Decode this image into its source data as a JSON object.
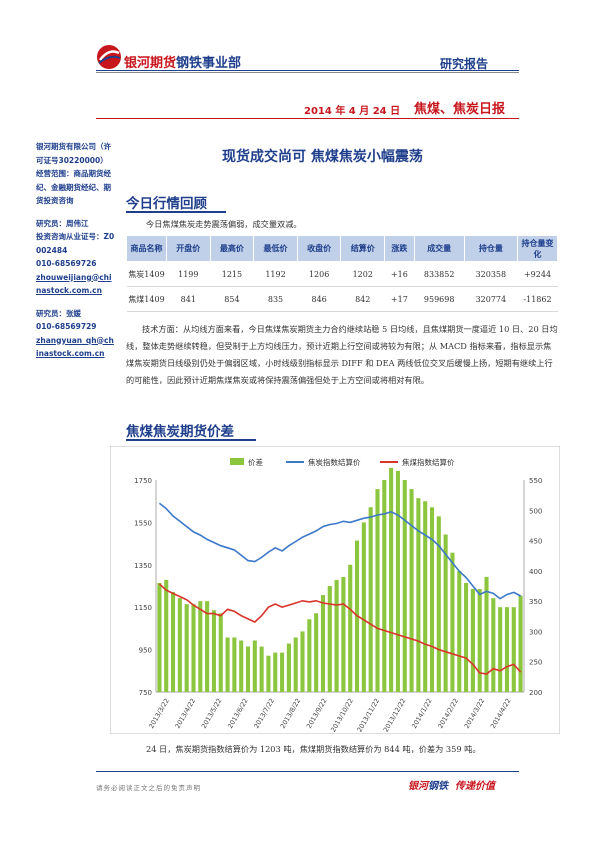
{
  "header": {
    "company_red": "银河期货",
    "company_blue": "钢铁事业部",
    "report_type": "研究报告",
    "date": "2014 年 4 月 24 日",
    "report_name": "焦煤、焦炭日报"
  },
  "sidebar": {
    "company": "银河期货有限公司（许可证号30220000）",
    "scope": "经营范围：商品期货经纪、金融期货经纪、期货投资咨询",
    "analyst1": "研究员：周伟江",
    "cert1": "投资咨询从业证号：Z0002484",
    "phone1": "010-68569726",
    "email1": "zhouweijiang@chinastock.com.cn",
    "analyst2": "研究员：张媛",
    "phone2": "010-68569729",
    "email2": "zhangyuan_qh@chinastock.com.cn"
  },
  "main": {
    "title": "现货成交尚可 焦煤焦炭小幅震荡",
    "section1": "今日行情回顾",
    "intro": "今日焦煤焦炭走势震荡偏弱，成交量双减。",
    "section2": "焦煤焦炭期货价差",
    "tech": "技术方面：从均线方面来看，今日焦煤焦炭期货主力合约继续站稳 5 日均线，且焦煤期货一度逼近 10 日、20 日均线，整体走势继续转稳，但受制于上方均线压力，预计近期上行空间或将较为有限；从 MACD 指标来看，指标显示焦煤焦炭期货日线级别仍处于偏弱区域，小时线级别指标显示 DIFF 和 DEA 两线低位交叉后缓慢上扬，短期有继续上行的可能性，因此预计近期焦煤焦炭或将保持震荡偏强但处于上方空间或将相对有限。",
    "summary": "24 日，焦炭期货指数结算价为 1203 吨，焦煤期货指数结算价为 844 吨，价差为 359 吨。"
  },
  "table": {
    "headers": [
      "商品名称",
      "开盘价",
      "最高价",
      "最低价",
      "收盘价",
      "结算价",
      "涨跌",
      "成交量",
      "持仓量",
      "持仓量变化"
    ],
    "rows": [
      [
        "焦炭1409",
        "1199",
        "1215",
        "1192",
        "1206",
        "1202",
        "+16",
        "833852",
        "320358",
        "+9244"
      ],
      [
        "焦煤1409",
        "841",
        "854",
        "835",
        "846",
        "842",
        "+17",
        "959698",
        "320774",
        "-11862"
      ]
    ]
  },
  "footer": {
    "disclaimer": "请务必阅读正文之后的免责声明",
    "slogan_red": "银河",
    "slogan_blue": "钢铁",
    "slogan_rest": "传递价值"
  },
  "chart_data": {
    "type": "bar",
    "legend_placement": "top",
    "series": [
      {
        "name": "价差",
        "axis": "right",
        "color": "#8cc63f",
        "type": "bar"
      },
      {
        "name": "焦炭指数结算价",
        "axis": "left",
        "color": "#3c78c8",
        "type": "line"
      },
      {
        "name": "焦煤指数结算价",
        "axis": "left",
        "color": "#d9342b",
        "type": "line"
      }
    ],
    "left_axis": {
      "ylim": [
        750,
        1750
      ],
      "ticks": [
        "1750",
        "1550",
        "1350",
        "1150",
        "950",
        "750"
      ]
    },
    "right_axis": {
      "ylim": [
        200,
        550
      ],
      "ticks": [
        "550",
        "500",
        "450",
        "400",
        "350",
        "300",
        "250",
        "200"
      ]
    },
    "x_ticks": [
      "2013/3/22",
      "2013/4/22",
      "2013/5/22",
      "2013/6/22",
      "2013/7/22",
      "2013/8/22",
      "2013/9/22",
      "2013/10/22",
      "2013/11/22",
      "2013/12/22",
      "2014/1/22",
      "2014/2/22",
      "2014/3/22",
      "2014/4/22"
    ],
    "coke": [
      1640,
      1615,
      1580,
      1555,
      1530,
      1505,
      1490,
      1470,
      1455,
      1440,
      1430,
      1420,
      1395,
      1370,
      1365,
      1385,
      1410,
      1430,
      1415,
      1440,
      1460,
      1480,
      1495,
      1510,
      1530,
      1540,
      1545,
      1555,
      1550,
      1560,
      1570,
      1575,
      1585,
      1590,
      1600,
      1585,
      1560,
      1535,
      1510,
      1490,
      1470,
      1440,
      1400,
      1360,
      1320,
      1290,
      1250,
      1210,
      1225,
      1215,
      1190,
      1210,
      1220,
      1203
    ],
    "coal": [
      1260,
      1230,
      1215,
      1200,
      1185,
      1160,
      1140,
      1120,
      1120,
      1110,
      1140,
      1130,
      1110,
      1095,
      1080,
      1110,
      1150,
      1165,
      1150,
      1160,
      1170,
      1180,
      1175,
      1180,
      1170,
      1165,
      1160,
      1165,
      1140,
      1110,
      1090,
      1070,
      1050,
      1040,
      1030,
      1020,
      1010,
      1000,
      990,
      975,
      965,
      950,
      940,
      930,
      920,
      910,
      880,
      840,
      835,
      860,
      850,
      870,
      880,
      844
    ],
    "spread": [
      380,
      385,
      365,
      355,
      345,
      345,
      350,
      350,
      335,
      330,
      290,
      290,
      285,
      275,
      285,
      275,
      260,
      265,
      265,
      280,
      290,
      300,
      320,
      330,
      360,
      375,
      385,
      390,
      410,
      450,
      480,
      505,
      535,
      550,
      570,
      565,
      550,
      535,
      520,
      515,
      505,
      490,
      460,
      430,
      400,
      380,
      370,
      370,
      390,
      355,
      340,
      340,
      340,
      359
    ]
  }
}
